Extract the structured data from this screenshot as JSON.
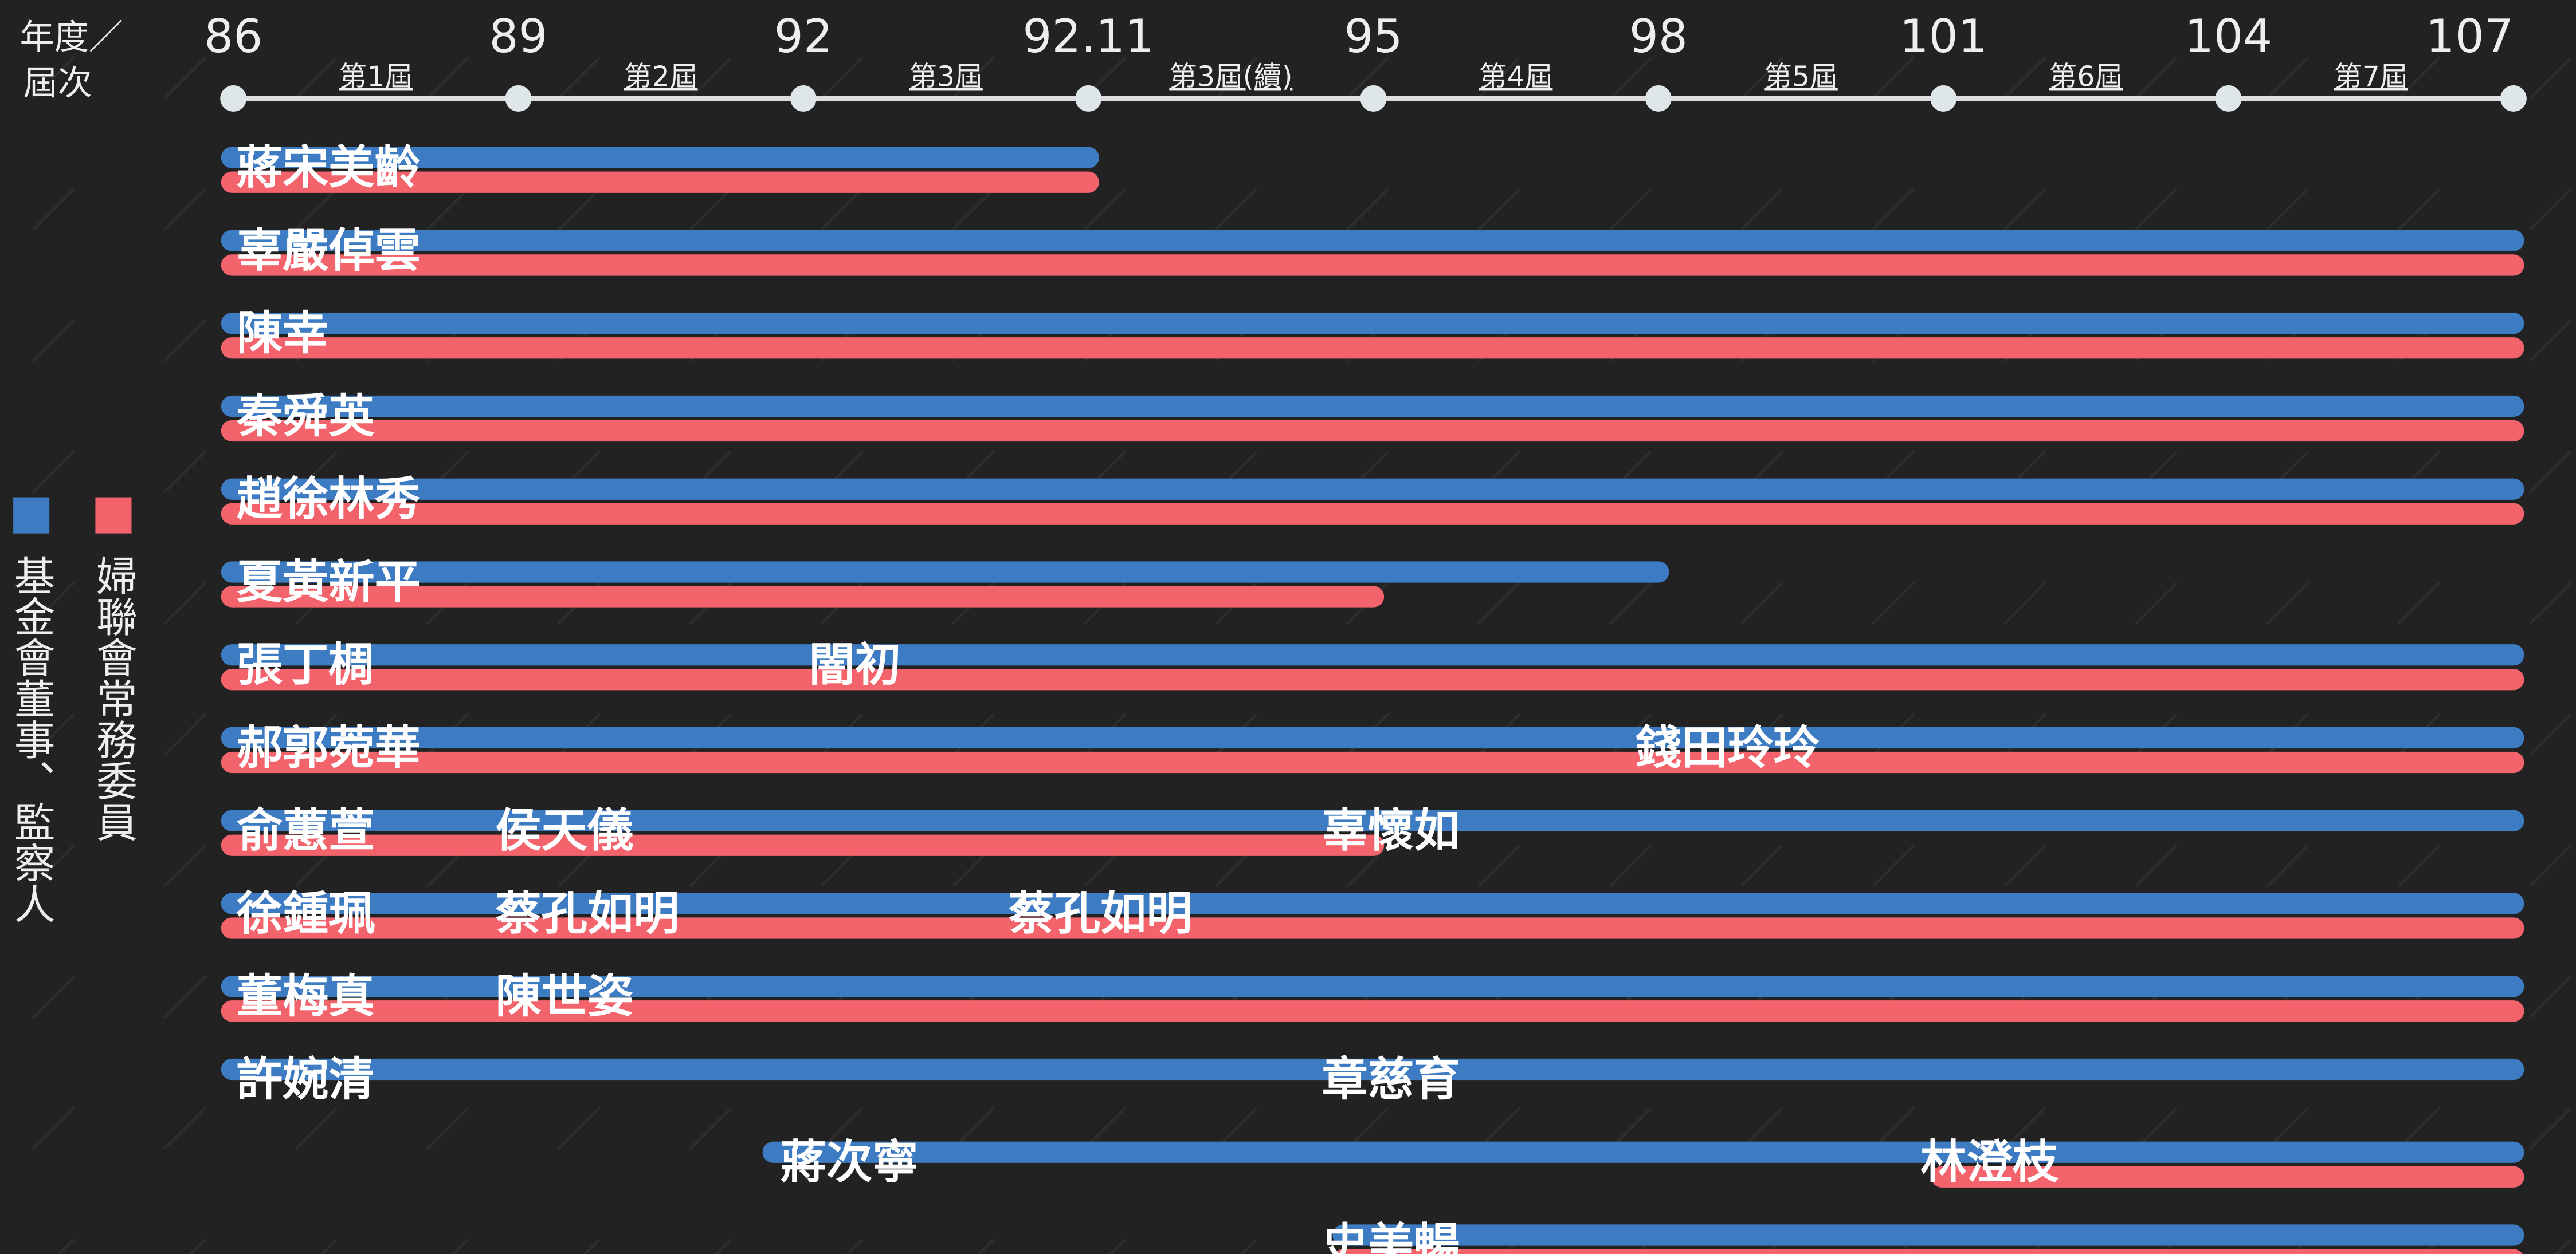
{
  "chart_data": {
    "type": "timeline",
    "axis_title": [
      "年度／",
      "屆次"
    ],
    "categories": [
      "86",
      "89",
      "92",
      "92.11",
      "95",
      "98",
      "101",
      "104",
      "107"
    ],
    "terms": [
      "第1屆",
      "第2屆",
      "第3屆",
      "第3屆(續)",
      "第4屆",
      "第5屆",
      "第6屆",
      "第7屆"
    ],
    "series": [
      {
        "name": "基金會董事、監察人",
        "color": "#3d7bc3"
      },
      {
        "name": "婦聯會常務委員",
        "color": "#f2636b"
      }
    ],
    "rows": [
      {
        "foundation": [
          0,
          3
        ],
        "committee": [
          0,
          3
        ],
        "names": [
          {
            "text": "蔣宋美齡",
            "at": 0
          }
        ]
      },
      {
        "foundation": [
          0,
          8
        ],
        "committee": [
          0,
          8
        ],
        "names": [
          {
            "text": "辜嚴倬雲",
            "at": 0
          }
        ]
      },
      {
        "foundation": [
          0,
          8
        ],
        "committee": [
          0,
          8
        ],
        "names": [
          {
            "text": "陳幸",
            "at": 0
          }
        ]
      },
      {
        "foundation": [
          0,
          8
        ],
        "committee": [
          0,
          8
        ],
        "names": [
          {
            "text": "秦舜英",
            "at": 0
          }
        ]
      },
      {
        "foundation": [
          0,
          8
        ],
        "committee": [
          0,
          8
        ],
        "names": [
          {
            "text": "趙徐林秀",
            "at": 0
          }
        ]
      },
      {
        "foundation": [
          0,
          5
        ],
        "committee": [
          0,
          4
        ],
        "names": [
          {
            "text": "夏黃新平",
            "at": 0
          }
        ]
      },
      {
        "foundation": [
          0,
          8
        ],
        "committee": [
          0,
          8
        ],
        "names": [
          {
            "text": "張丁椆",
            "at": 0
          },
          {
            "text": "闇初",
            "at": 2.1
          }
        ]
      },
      {
        "foundation": [
          0,
          8
        ],
        "committee": [
          0,
          8
        ],
        "names": [
          {
            "text": "郝郭菀華",
            "at": 0
          },
          {
            "text": "錢田玲玲",
            "at": 5
          }
        ]
      },
      {
        "foundation": [
          0,
          8
        ],
        "committee": [
          0,
          4
        ],
        "names": [
          {
            "text": "俞蕙萱",
            "at": 0
          },
          {
            "text": "侯天儀",
            "at": 1
          },
          {
            "text": "辜懷如",
            "at": 3.9
          }
        ]
      },
      {
        "foundation": [
          0,
          8
        ],
        "committee": [
          0,
          8
        ],
        "names": [
          {
            "text": "徐鍾珮",
            "at": 0
          },
          {
            "text": "蔡孔如明",
            "at": 1
          },
          {
            "text": "蔡孔如明",
            "at": 2.8
          }
        ]
      },
      {
        "foundation": [
          0,
          8
        ],
        "committee": [
          0,
          8
        ],
        "names": [
          {
            "text": "董梅真",
            "at": 0
          },
          {
            "text": "陳世姿",
            "at": 1
          }
        ]
      },
      {
        "foundation": [
          0,
          8
        ],
        "committee": null,
        "names": [
          {
            "text": "許婉清",
            "at": 0
          },
          {
            "text": "章慈育",
            "at": 3.9
          }
        ]
      },
      {
        "foundation": [
          1.9,
          8
        ],
        "committee": [
          6,
          8
        ],
        "names": [
          {
            "text": "蔣次寧",
            "at": 2
          },
          {
            "text": "林澄枝",
            "at": 6
          }
        ]
      },
      {
        "foundation": [
          3.9,
          8
        ],
        "committee": [
          3.9,
          8
        ],
        "names": [
          {
            "text": "史美暢",
            "at": 3.9
          }
        ]
      }
    ]
  }
}
